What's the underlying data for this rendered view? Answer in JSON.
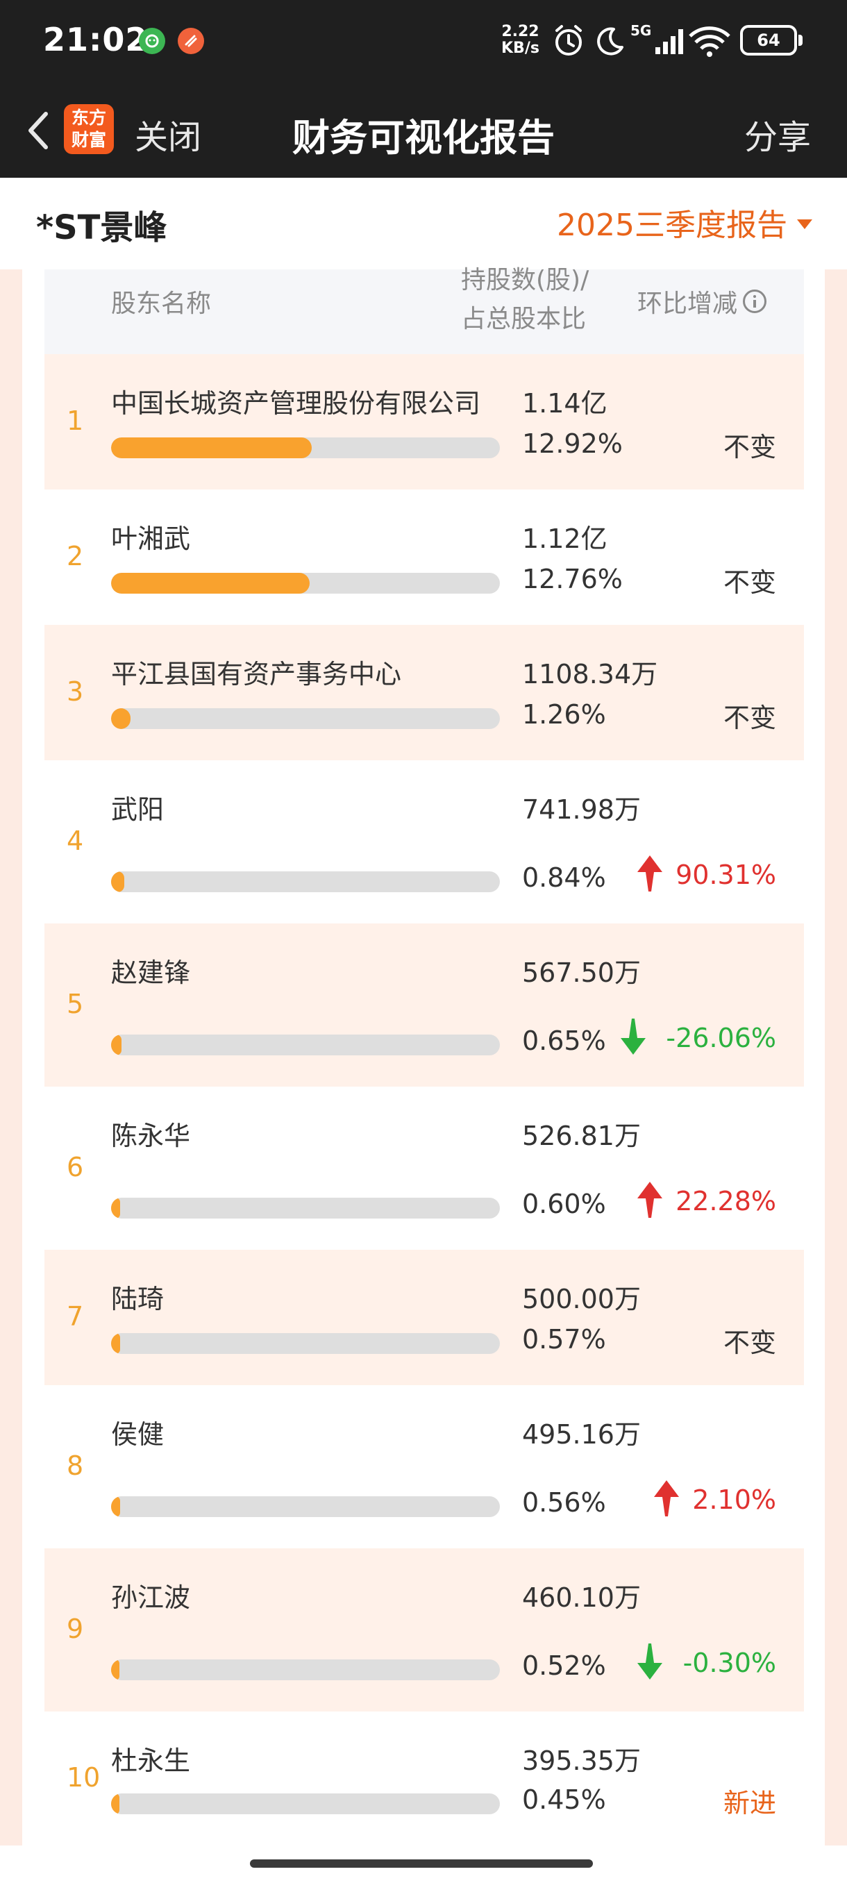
{
  "status_bar": {
    "time": "21:02",
    "speed_value": "2.22",
    "speed_unit": "KB/s",
    "network": "5G",
    "battery": "64",
    "battery_level": 0.64,
    "icons": [
      "wechat-icon",
      "app-icon",
      "alarm-icon",
      "moon-icon",
      "signal-icon",
      "wifi-icon",
      "battery-icon"
    ]
  },
  "nav": {
    "logo_line1": "东方",
    "logo_line2": "财富",
    "close": "关闭",
    "title": "财务可视化报告",
    "share": "分享"
  },
  "stock": {
    "name": "*ST景峰",
    "report": "2025三季度报告"
  },
  "table": {
    "col_name": "股东名称",
    "col_hold_line1": "持股数(股)/",
    "col_hold_line2": "占总股本比",
    "col_change": "环比增减",
    "rows": [
      {
        "rank": "1",
        "name": "中国长城资产管理股份有限公司",
        "shares": "1.14亿",
        "pct": "12.92%",
        "pct_value": 12.92,
        "change": "不变",
        "dir": "flat"
      },
      {
        "rank": "2",
        "name": "叶湘武",
        "shares": "1.12亿",
        "pct": "12.76%",
        "pct_value": 12.76,
        "change": "不变",
        "dir": "flat"
      },
      {
        "rank": "3",
        "name": "平江县国有资产事务中心",
        "shares": "1108.34万",
        "pct": "1.26%",
        "pct_value": 1.26,
        "change": "不变",
        "dir": "flat"
      },
      {
        "rank": "4",
        "name": "武阳",
        "shares": "741.98万",
        "pct": "0.84%",
        "pct_value": 0.84,
        "change": "90.31%",
        "dir": "up"
      },
      {
        "rank": "5",
        "name": "赵建锋",
        "shares": "567.50万",
        "pct": "0.65%",
        "pct_value": 0.65,
        "change": "-26.06%",
        "dir": "down"
      },
      {
        "rank": "6",
        "name": "陈永华",
        "shares": "526.81万",
        "pct": "0.60%",
        "pct_value": 0.6,
        "change": "22.28%",
        "dir": "up"
      },
      {
        "rank": "7",
        "name": "陆琦",
        "shares": "500.00万",
        "pct": "0.57%",
        "pct_value": 0.57,
        "change": "不变",
        "dir": "flat"
      },
      {
        "rank": "8",
        "name": "侯健",
        "shares": "495.16万",
        "pct": "0.56%",
        "pct_value": 0.56,
        "change": "2.10%",
        "dir": "up"
      },
      {
        "rank": "9",
        "name": "孙江波",
        "shares": "460.10万",
        "pct": "0.52%",
        "pct_value": 0.52,
        "change": "-0.30%",
        "dir": "down"
      },
      {
        "rank": "10",
        "name": "杜永生",
        "shares": "395.35万",
        "pct": "0.45%",
        "pct_value": 0.45,
        "change": "新进",
        "dir": "new"
      }
    ]
  },
  "colors": {
    "accent": "#e8641b",
    "bar": "#f9a22e",
    "up": "#e0312f",
    "down": "#2bb13f"
  }
}
